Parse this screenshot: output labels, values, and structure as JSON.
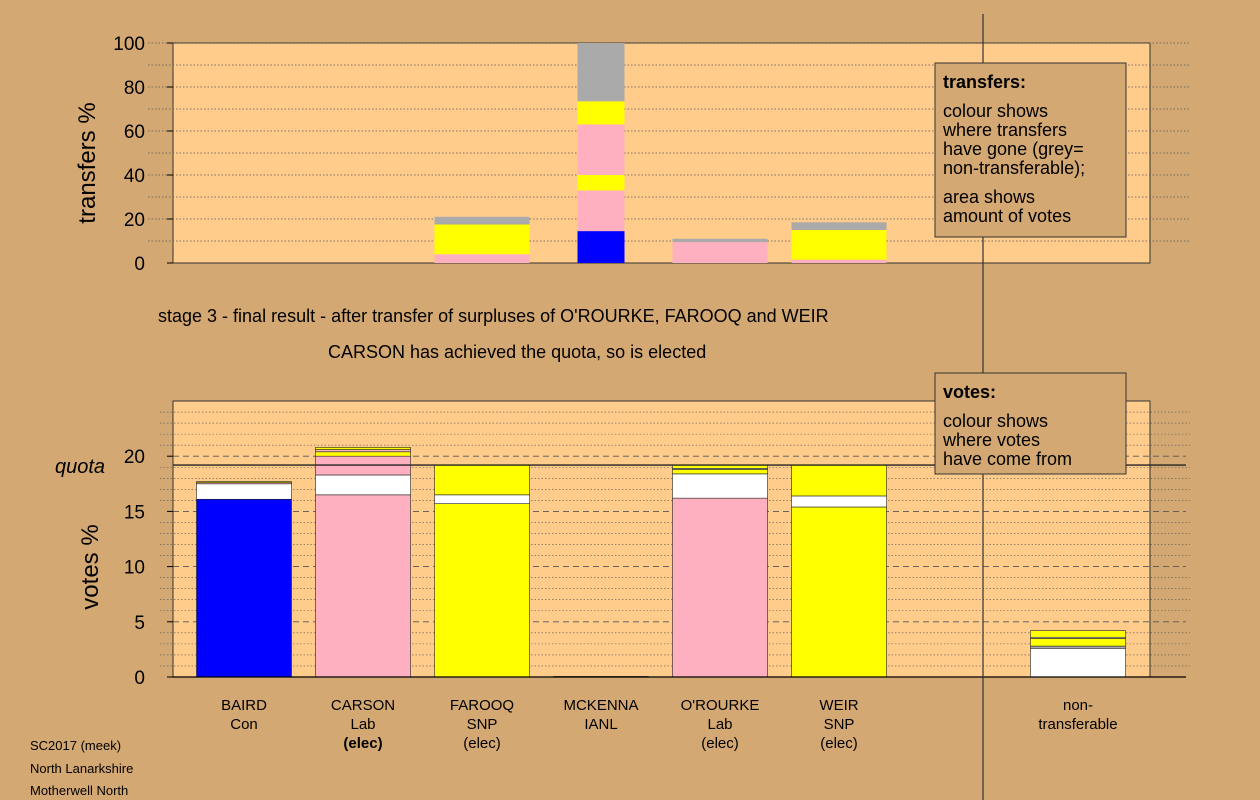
{
  "colors": {
    "page_bg": "#d4a872",
    "plot_bg": "#ffcc8c",
    "Con": "#0000ff",
    "Lab": "#ffb0c0",
    "SNP": "#ffff00",
    "white": "#ffffff",
    "nontransferable": "#aaaaaa"
  },
  "captions": {
    "line1": "stage 3 - final result - after transfer of surpluses of O'ROURKE, FAROOQ and WEIR",
    "line2": "CARSON has achieved the quota, so is elected"
  },
  "footer": {
    "line1": "SC2017 (meek)",
    "line2": "North Lanarkshire",
    "line3": "Motherwell North"
  },
  "transfers_legend": {
    "title": "transfers:",
    "lines1": [
      "colour shows",
      "where transfers",
      "have gone (grey=",
      "non-transferable);"
    ],
    "lines2": [
      "area shows",
      "amount of votes"
    ]
  },
  "votes_legend": {
    "title": "votes:",
    "lines1": [
      "colour shows",
      "where votes",
      "have come from"
    ]
  },
  "chart_data": [
    {
      "type": "bar",
      "ylabel": "transfers %",
      "ylim": [
        0,
        100
      ],
      "yticks": [
        0,
        20,
        40,
        60,
        80,
        100
      ],
      "categories": [
        "BAIRD",
        "CARSON",
        "FAROOQ",
        "MCKENNA",
        "O'ROURKE",
        "WEIR"
      ],
      "bars": [
        [],
        [],
        [
          {
            "color": "Lab",
            "value": 4
          },
          {
            "color": "SNP",
            "value": 13.5
          },
          {
            "color": "nontransferable",
            "value": 3.5
          }
        ],
        [],
        [
          {
            "color": "Lab",
            "value": 9.5
          },
          {
            "color": "nontransferable",
            "value": 1.5
          }
        ],
        [
          {
            "color": "Lab",
            "value": 1.5
          },
          {
            "color": "SNP",
            "value": 13.5
          },
          {
            "color": "nontransferable",
            "value": 3.5
          }
        ]
      ],
      "wide_bar": {
        "position": 3,
        "segments": [
          {
            "color": "Con",
            "value": 14.5
          },
          {
            "color": "Lab",
            "value": 18.5
          },
          {
            "color": "SNP",
            "value": 7
          },
          {
            "color": "Lab",
            "value": 23
          },
          {
            "color": "SNP",
            "value": 10.5
          },
          {
            "color": "nontransferable",
            "value": 26.5
          }
        ]
      }
    },
    {
      "type": "bar",
      "ylabel": "votes %",
      "ylim": [
        0,
        25
      ],
      "yticks": [
        0,
        5,
        10,
        15,
        20
      ],
      "quota_label": "quota",
      "quota": 19.2,
      "categories": [
        {
          "name": "BAIRD",
          "party": "Con",
          "status": ""
        },
        {
          "name": "CARSON",
          "party": "Lab",
          "status": "(elec)"
        },
        {
          "name": "FAROOQ",
          "party": "SNP",
          "status": "(elec)"
        },
        {
          "name": "MCKENNA",
          "party": "IANL",
          "status": ""
        },
        {
          "name": "O'ROURKE",
          "party": "Lab",
          "status": "(elec)"
        },
        {
          "name": "WEIR",
          "party": "SNP",
          "status": "(elec)"
        },
        {
          "name": "non-",
          "party": "transferable",
          "status": ""
        }
      ],
      "bars": [
        [
          {
            "color": "Con",
            "value": 16.1
          },
          {
            "color": "white",
            "value": 1.4
          },
          {
            "color": "Lab",
            "value": 0.1
          },
          {
            "color": "SNP",
            "value": 0.1
          }
        ],
        [
          {
            "color": "Lab",
            "value": 16.5
          },
          {
            "color": "white",
            "value": 1.8
          },
          {
            "color": "Lab",
            "value": 1.7
          },
          {
            "color": "SNP",
            "value": 0.4
          },
          {
            "color": "Lab",
            "value": 0.2
          },
          {
            "color": "SNP",
            "value": 0.2
          }
        ],
        [
          {
            "color": "SNP",
            "value": 15.7
          },
          {
            "color": "white",
            "value": 0.8
          },
          {
            "color": "SNP",
            "value": 2.7
          }
        ],
        [
          {
            "color": "Con",
            "value": 0.05
          }
        ],
        [
          {
            "color": "Lab",
            "value": 16.2
          },
          {
            "color": "white",
            "value": 2.2
          },
          {
            "color": "SNP",
            "value": 0.4
          },
          {
            "color": "white",
            "value": 0.1
          },
          {
            "color": "SNP",
            "value": 0.3
          }
        ],
        [
          {
            "color": "SNP",
            "value": 15.4
          },
          {
            "color": "white",
            "value": 1.0
          },
          {
            "color": "SNP",
            "value": 2.8
          }
        ],
        [
          {
            "color": "white",
            "value": 2.6
          },
          {
            "color": "nontransferable",
            "value": 0.2
          },
          {
            "color": "SNP",
            "value": 0.7
          },
          {
            "color": "white",
            "value": 0.1
          },
          {
            "color": "SNP",
            "value": 0.6
          }
        ]
      ]
    }
  ]
}
